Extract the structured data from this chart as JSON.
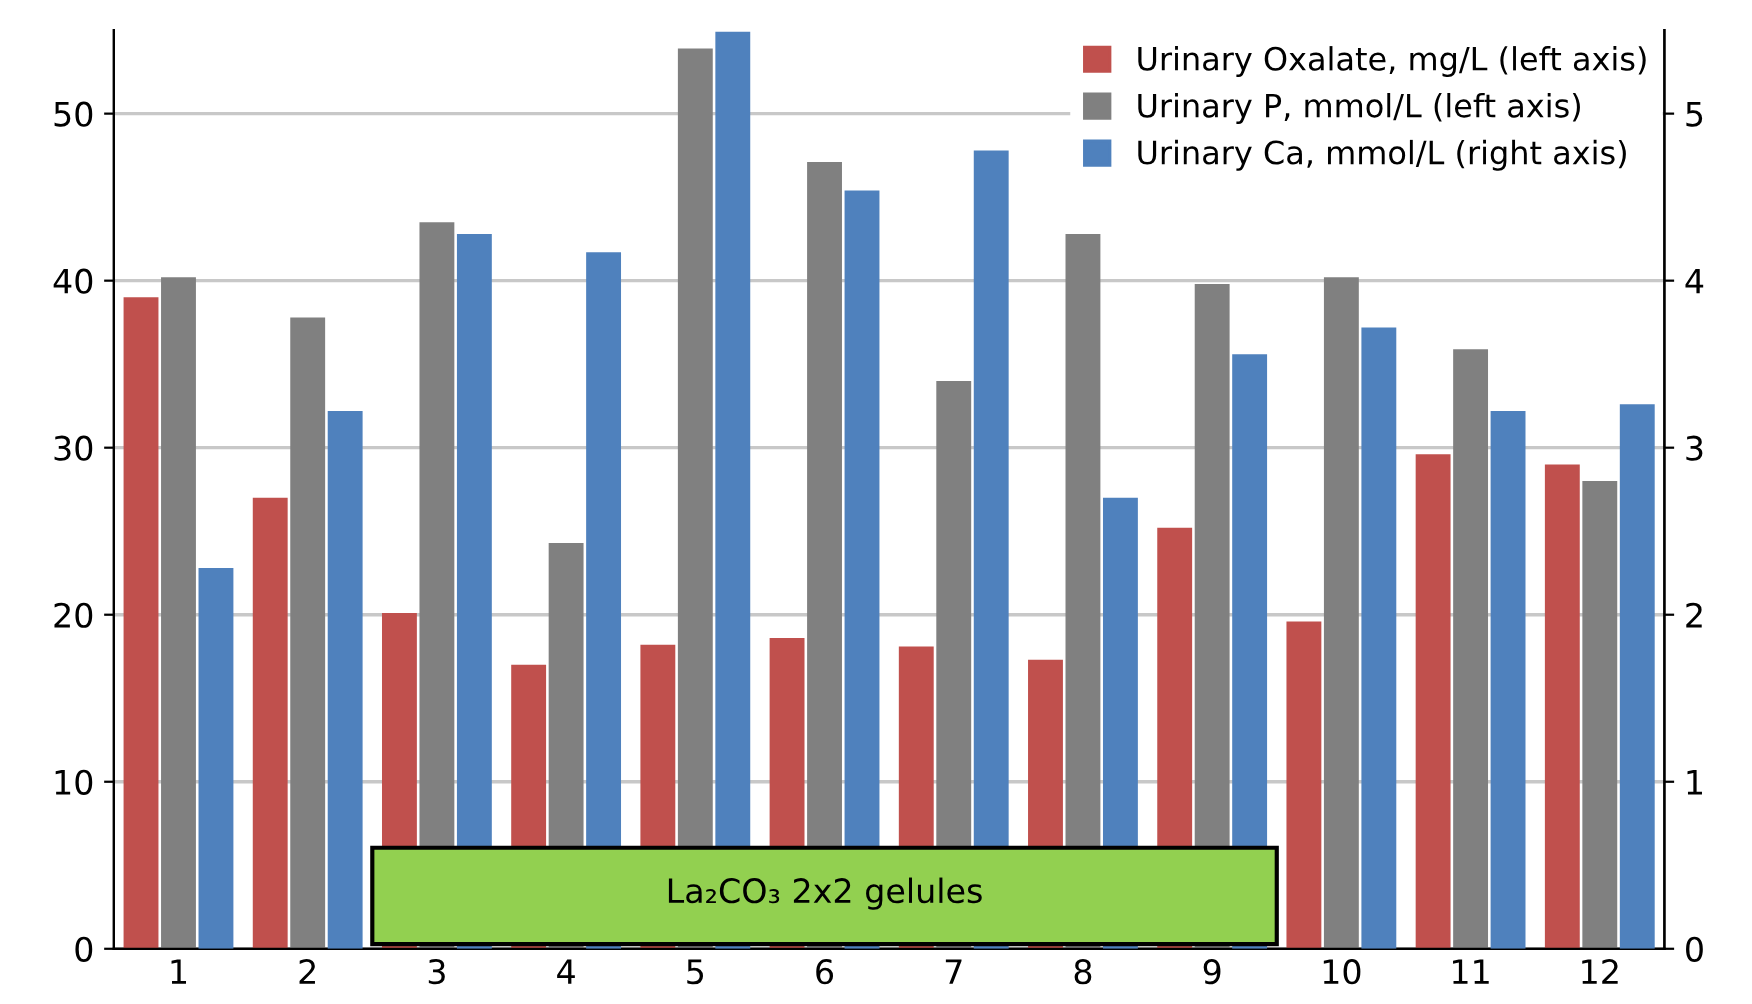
{
  "chart_data": {
    "type": "bar",
    "categories": [
      "1",
      "2",
      "3",
      "4",
      "5",
      "6",
      "7",
      "8",
      "9",
      "10",
      "11",
      "12"
    ],
    "series": [
      {
        "name": "Urinary Oxalate, mg/L (left axis)",
        "color": "#c0504d",
        "values": [
          39.0,
          27.0,
          20.1,
          17.0,
          18.2,
          18.6,
          18.1,
          17.3,
          25.2,
          19.6,
          29.6,
          29.0
        ]
      },
      {
        "name": "Urinary P, mmol/L (left axis)",
        "color": "#808080",
        "values": [
          40.2,
          37.8,
          43.5,
          24.3,
          53.9,
          47.1,
          34.0,
          42.8,
          39.8,
          40.2,
          35.9,
          28.0
        ]
      },
      {
        "name": "Urinary Ca, mmol/L (right axis)",
        "color": "#4f81bd",
        "axis": "y2",
        "values": [
          2.28,
          3.22,
          4.28,
          4.17,
          5.49,
          4.54,
          4.78,
          2.7,
          3.56,
          3.72,
          3.22,
          3.26
        ]
      }
    ],
    "ylim": [
      0,
      55
    ],
    "yticks": [
      0,
      10,
      20,
      30,
      40,
      50
    ],
    "y2lim": [
      0,
      5.5
    ],
    "y2ticks": [
      0,
      1,
      2,
      3,
      4,
      5
    ],
    "bands": [
      {
        "axis": "x",
        "from": "3",
        "to": "9",
        "label": "La₂CO₃ 2x2 gelules",
        "color": "#92d050"
      }
    ],
    "grid": "y",
    "legend": "top right"
  }
}
